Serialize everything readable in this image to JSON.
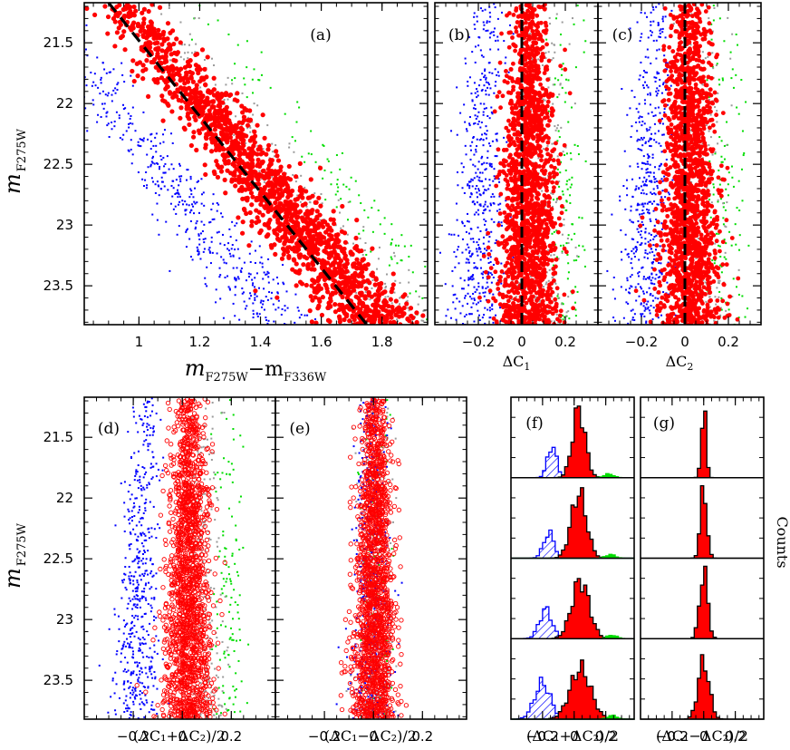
{
  "figure": {
    "colors": {
      "red": "#ff0000",
      "blue": "#0000ff",
      "green": "#00dd00",
      "gray": "#9a9a9a",
      "black": "#000000"
    },
    "y_axis_label_main": "m",
    "y_axis_label_sub": "F275W",
    "counts_label": "Counts"
  },
  "chart_data": [
    {
      "panel": "(a)",
      "type": "scatter",
      "xlabel_main": "m",
      "xlabel_sub1": "F275W",
      "xlabel_dash": "−m",
      "xlabel_sub2": "F336W",
      "xlim": [
        0.82,
        1.95
      ],
      "ylim": [
        23.82,
        21.17
      ],
      "y_inverted": true,
      "xticks": [
        1,
        1.2,
        1.4,
        1.6,
        1.8
      ],
      "xtick_labels": [
        "1",
        "1.2",
        "1.4",
        "1.6",
        "1.8"
      ],
      "yticks": [
        21.5,
        22,
        22.5,
        23,
        23.5
      ],
      "ytick_labels": [
        "21.5",
        "22",
        "22.5",
        "23",
        "23.5"
      ],
      "fiducial_line": {
        "x": [
          0.9,
          1.75
        ],
        "y": [
          21.17,
          23.82
        ],
        "style": "dashed"
      },
      "populations": [
        {
          "color": "red",
          "approx_points": 1700,
          "note": "main sequence"
        },
        {
          "color": "blue",
          "approx_points": 500,
          "note": "blue edge"
        },
        {
          "color": "gray",
          "approx_points": 250
        },
        {
          "color": "green",
          "approx_points": 120
        }
      ]
    },
    {
      "panel": "(b)",
      "type": "scatter",
      "xlabel": "ΔC",
      "xlabel_sub": "1",
      "xlim": [
        -0.4,
        0.35
      ],
      "ylim": [
        23.82,
        21.17
      ],
      "xticks": [
        -0.2,
        0,
        0.2
      ],
      "xtick_labels": [
        "−0.2",
        "0",
        "0.2"
      ],
      "reference_line": {
        "x": 0,
        "style": "dashed"
      }
    },
    {
      "panel": "(c)",
      "type": "scatter",
      "xlabel": "ΔC",
      "xlabel_sub": "2",
      "xlim": [
        -0.4,
        0.35
      ],
      "ylim": [
        23.82,
        21.17
      ],
      "xticks": [
        -0.2,
        0,
        0.2
      ],
      "xtick_labels": [
        "−0.2",
        "0",
        "0.2"
      ],
      "reference_line": {
        "x": 0,
        "style": "dashed"
      }
    },
    {
      "panel": "(d)",
      "type": "scatter",
      "xlabel": "(ΔC₁+ΔC₂)/2",
      "xlim": [
        -0.4,
        0.38
      ],
      "ylim": [
        23.82,
        21.17
      ],
      "xticks": [
        -0.2,
        0,
        0.2
      ],
      "xtick_labels": [
        "−0.2",
        "0",
        "0.2"
      ],
      "yticks": [
        21.5,
        22,
        22.5,
        23,
        23.5
      ],
      "ytick_labels": [
        "21.5",
        "22",
        "22.5",
        "23",
        "23.5"
      ]
    },
    {
      "panel": "(e)",
      "type": "scatter",
      "xlabel": "(ΔC₁−ΔC₂)/2",
      "xlim": [
        -0.4,
        0.38
      ],
      "ylim": [
        23.82,
        21.17
      ],
      "xticks": [
        -0.2,
        0,
        0.2
      ],
      "xtick_labels": [
        "−0.2",
        "0",
        "0.2"
      ]
    },
    {
      "panel": "(f)",
      "type": "histogram",
      "xlabel": "(ΔC₁+ΔC₂)/2",
      "xlim": [
        -0.4,
        0.38
      ],
      "xticks": [
        -0.2,
        0,
        0.2
      ],
      "xtick_labels": [
        "−0.2",
        "0",
        "0.2"
      ],
      "magnitude_bins": [
        [
          21.17,
          21.83
        ],
        [
          21.83,
          22.5
        ],
        [
          22.5,
          23.16
        ],
        [
          23.16,
          23.82
        ]
      ],
      "components": [
        {
          "name": "blue",
          "fill": "hatched",
          "centers": [
            -0.14,
            -0.16,
            -0.18,
            -0.2
          ],
          "sigma": [
            0.028,
            0.033,
            0.04,
            0.05
          ],
          "amp": [
            0.45,
            0.35,
            0.4,
            0.5
          ]
        },
        {
          "name": "red",
          "fill": "solid",
          "centers": [
            0.03,
            0.03,
            0.04,
            0.04
          ],
          "sigma": [
            0.04,
            0.048,
            0.055,
            0.065
          ],
          "amp": [
            0.95,
            0.9,
            0.8,
            0.7
          ]
        },
        {
          "name": "green",
          "fill": "solid",
          "centers": [
            0.22,
            0.23,
            0.24,
            0.24
          ],
          "sigma": [
            0.03,
            0.03,
            0.03,
            0.03
          ],
          "amp": [
            0.05,
            0.05,
            0.05,
            0.05
          ]
        }
      ]
    },
    {
      "panel": "(g)",
      "type": "histogram",
      "xlabel": "(ΔC₁−ΔC₂)/2",
      "xlim": [
        -0.4,
        0.38
      ],
      "xticks": [
        -0.2,
        0,
        0.2
      ],
      "xtick_labels": [
        "−0.2",
        "0",
        "0.2"
      ],
      "magnitude_bins": [
        [
          21.17,
          21.83
        ],
        [
          21.83,
          22.5
        ],
        [
          22.5,
          23.16
        ],
        [
          23.16,
          23.82
        ]
      ],
      "components": [
        {
          "name": "red",
          "fill": "solid",
          "centers": [
            0.0,
            0.0,
            0.0,
            0.0
          ],
          "sigma": [
            0.015,
            0.02,
            0.025,
            0.035
          ],
          "amp": [
            1.0,
            1.0,
            0.95,
            0.8
          ]
        }
      ]
    }
  ]
}
